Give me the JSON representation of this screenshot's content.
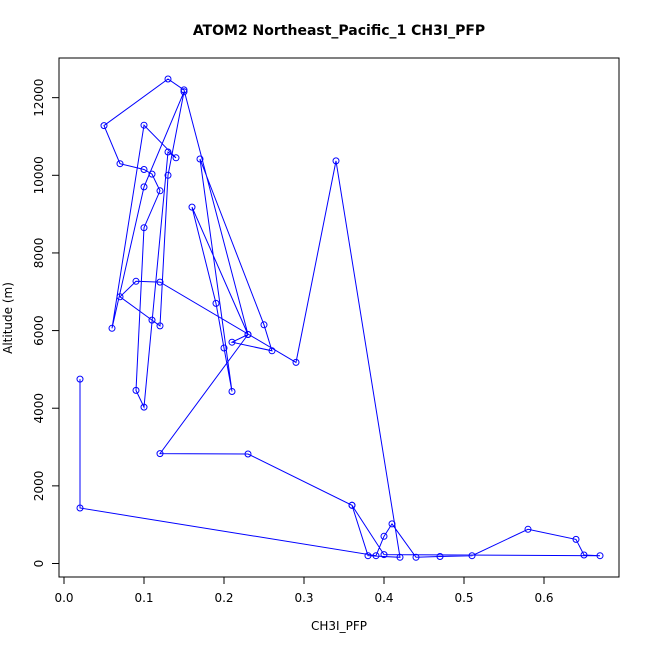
{
  "chart_data": {
    "type": "line",
    "title": "ATOM2 Northeast_Pacific_1 CH3I_PFP",
    "xlabel": "CH3I_PFP",
    "ylabel": "Altitude (m)",
    "xlim": [
      0,
      0.67
    ],
    "ylim": [
      0,
      12500
    ],
    "x_ticks": [
      0.0,
      0.1,
      0.2,
      0.3,
      0.4,
      0.5,
      0.6
    ],
    "x_tick_labels": [
      "0.0",
      "0.1",
      "0.2",
      "0.3",
      "0.4",
      "0.5",
      "0.6"
    ],
    "y_ticks": [
      0,
      2000,
      4000,
      6000,
      8000,
      10000,
      12000
    ],
    "y_tick_labels": [
      "0",
      "2000",
      "4000",
      "6000",
      "8000",
      "10000",
      "12000"
    ],
    "grid": false,
    "marker": "open-circle",
    "line_color": "#0000ff",
    "series": [
      {
        "x": [
          0.02,
          0.02,
          0.39,
          0.4,
          0.41,
          0.44,
          0.47,
          0.51,
          0.58,
          0.64,
          0.65,
          0.67,
          0.4,
          0.36,
          0.23,
          0.12,
          0.23,
          0.21,
          0.26,
          0.25,
          0.17,
          0.21,
          0.2,
          0.19,
          0.16,
          0.23,
          0.15,
          0.13,
          0.05,
          0.07,
          0.1,
          0.11,
          0.12,
          0.1,
          0.09,
          0.1,
          0.13,
          0.14,
          0.1,
          0.06,
          0.1,
          0.15,
          0.13,
          0.12,
          0.11,
          0.07,
          0.09,
          0.12,
          0.29,
          0.34,
          0.42,
          0.38,
          0.36
        ],
        "y": [
          4750,
          1430,
          200,
          700,
          1020,
          160,
          180,
          200,
          880,
          620,
          220,
          200,
          230,
          1500,
          2820,
          2830,
          5900,
          5700,
          5480,
          6150,
          10420,
          4430,
          5550,
          6700,
          9180,
          5900,
          12200,
          12480,
          11280,
          10300,
          10150,
          10030,
          9600,
          8650,
          4460,
          4030,
          10600,
          10450,
          11290,
          6060,
          9700,
          12150,
          10000,
          6120,
          6270,
          6870,
          7270,
          7250,
          5180,
          10370,
          160,
          200,
          1500
        ]
      }
    ]
  }
}
